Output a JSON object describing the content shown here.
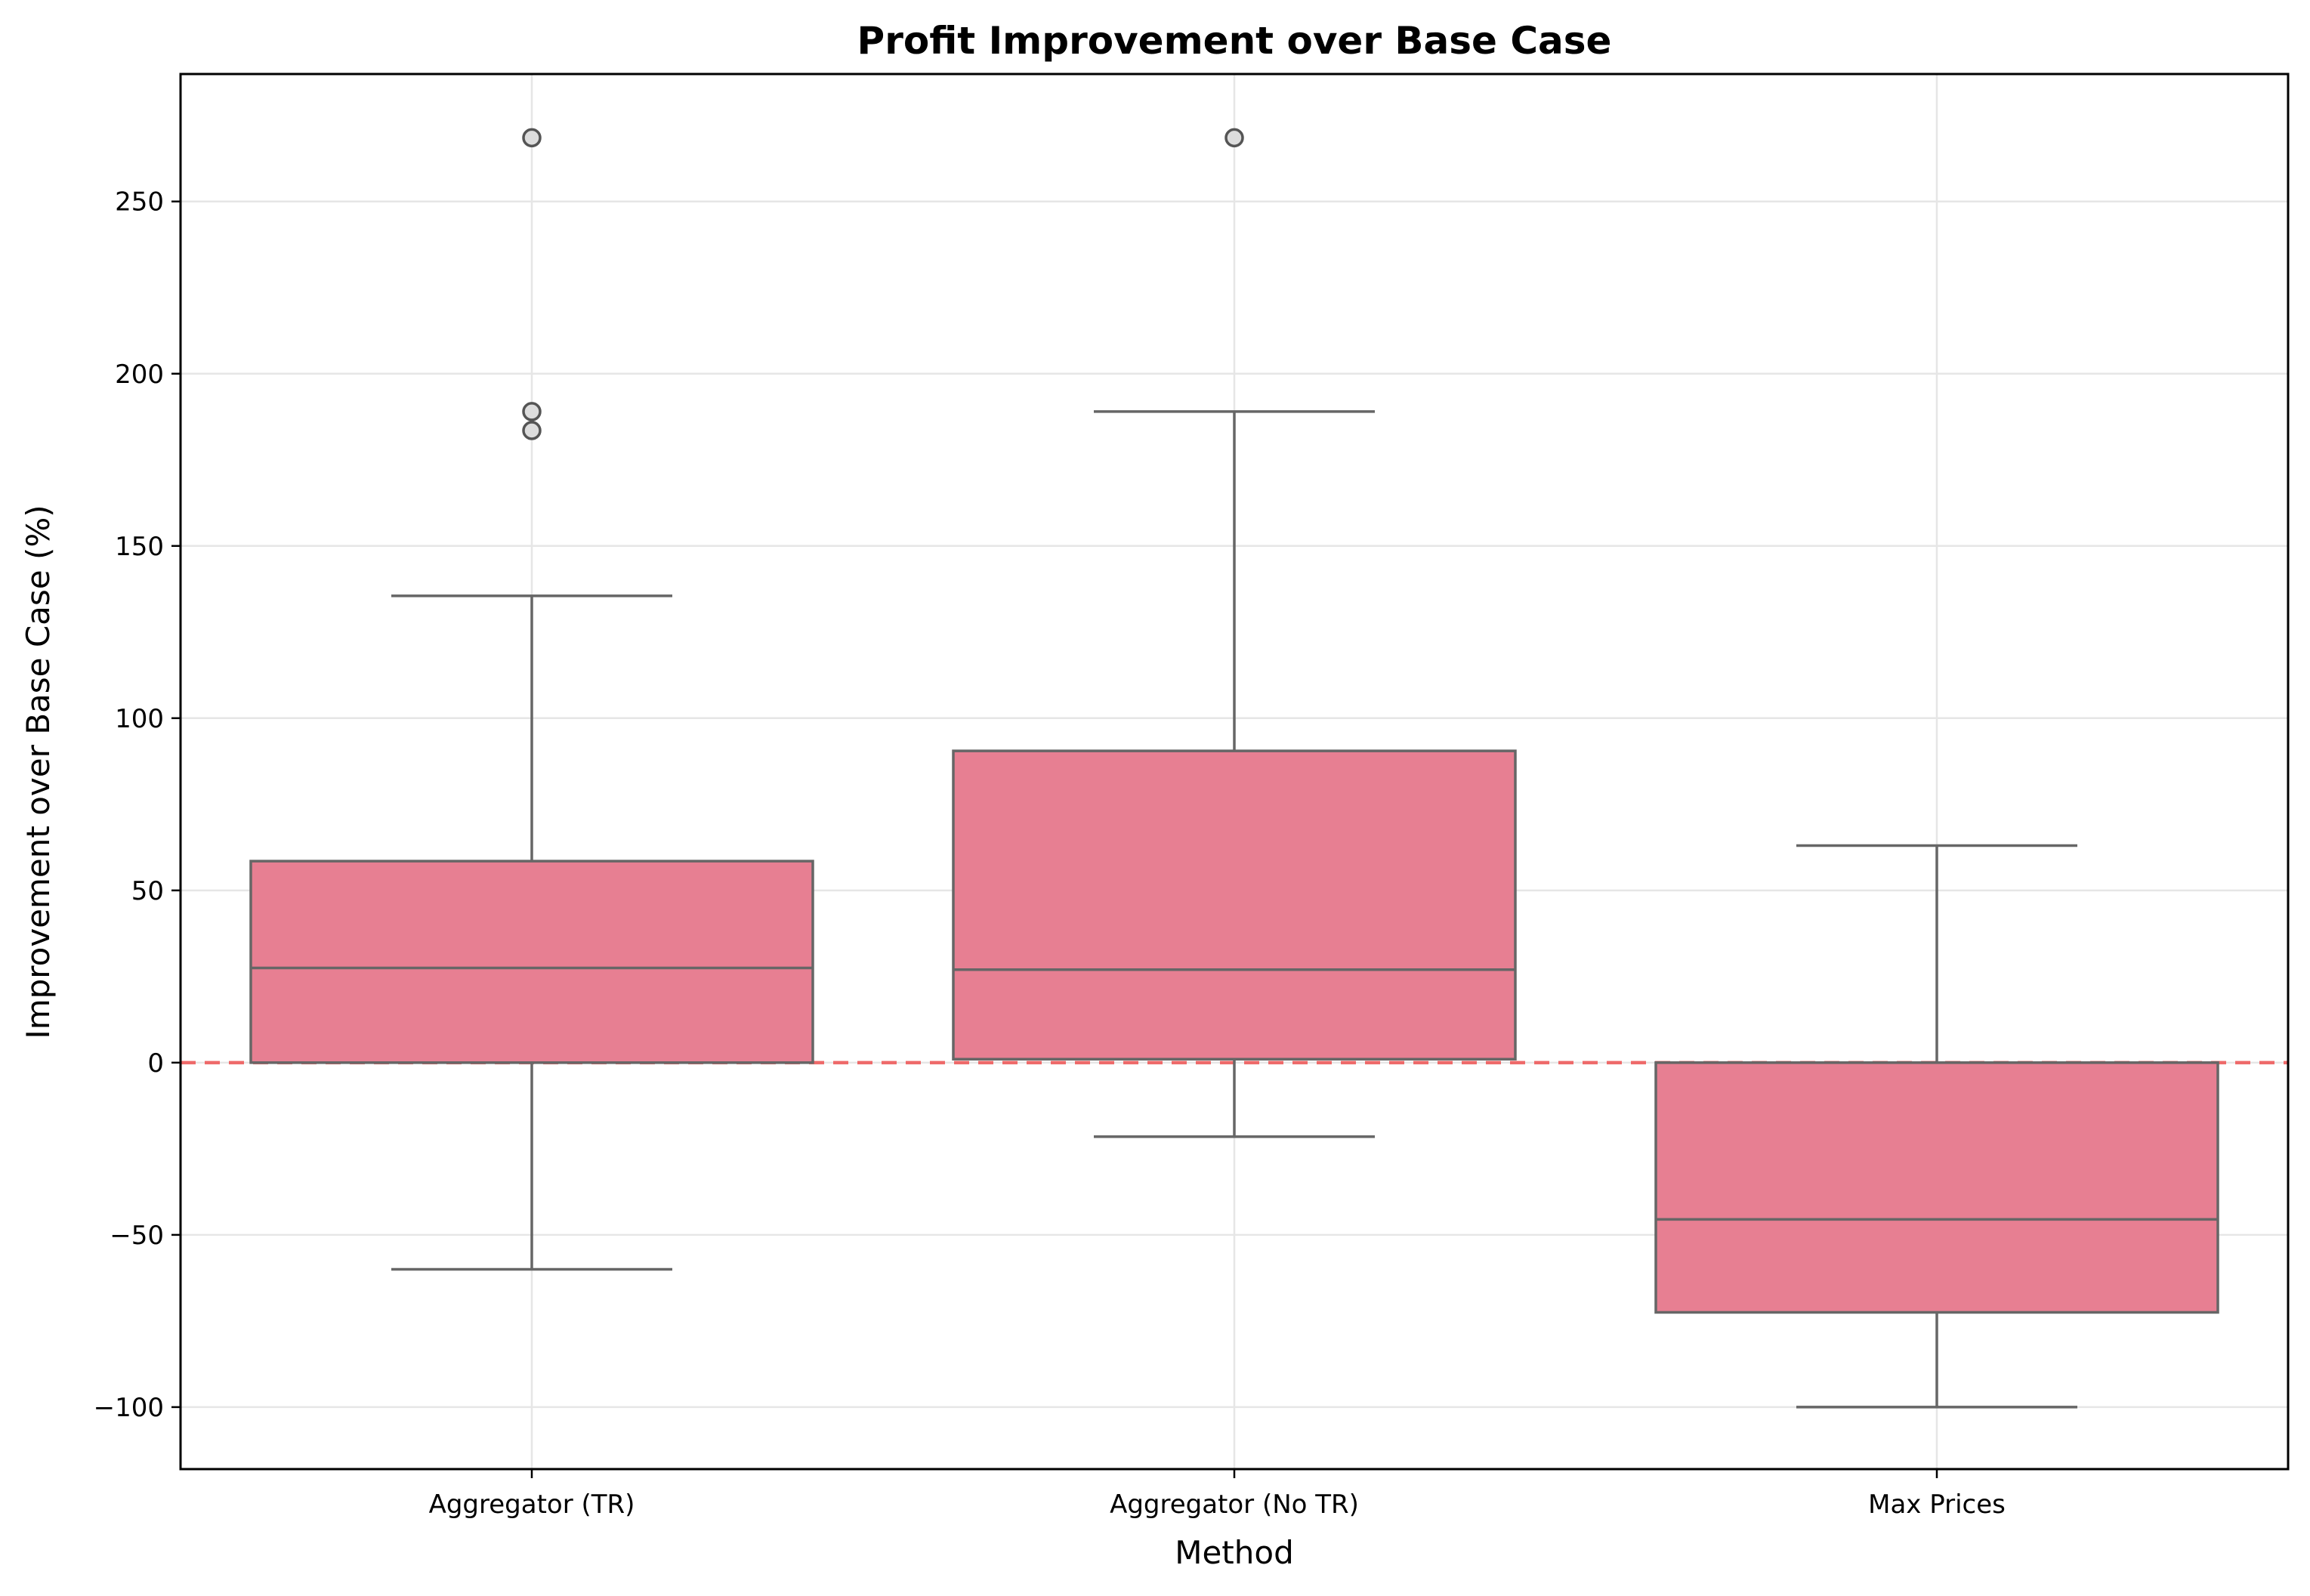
{
  "chart_data": {
    "type": "box",
    "title": "Profit Improvement over Base Case",
    "xlabel": "Method",
    "ylabel": "Improvement over Base Case (%)",
    "categories": [
      "Aggregator (TR)",
      "Aggregator (No TR)",
      "Max Prices"
    ],
    "ylim": [
      -118,
      287
    ],
    "yticks": [
      -100,
      -50,
      0,
      50,
      100,
      150,
      200,
      250
    ],
    "ytick_labels": [
      "−100",
      "−50",
      "0",
      "50",
      "100",
      "150",
      "200",
      "250"
    ],
    "grid": true,
    "box_color": "#e77f92",
    "reference_line": {
      "y": 0,
      "color": "#ee6a6a",
      "style": "dashed"
    },
    "boxes": [
      {
        "category": "Aggregator (TR)",
        "whisker_low": -60,
        "q1": 0,
        "median": 27.5,
        "q3": 58.5,
        "whisker_high": 135.5,
        "outliers": [
          183.5,
          189,
          268.5
        ]
      },
      {
        "category": "Aggregator (No TR)",
        "whisker_low": -21.5,
        "q1": 1,
        "median": 27,
        "q3": 90.5,
        "whisker_high": 189,
        "outliers": [
          268.5
        ]
      },
      {
        "category": "Max Prices",
        "whisker_low": -100,
        "q1": -72.5,
        "median": -45.5,
        "q3": 0,
        "whisker_high": 63,
        "outliers": []
      }
    ]
  }
}
